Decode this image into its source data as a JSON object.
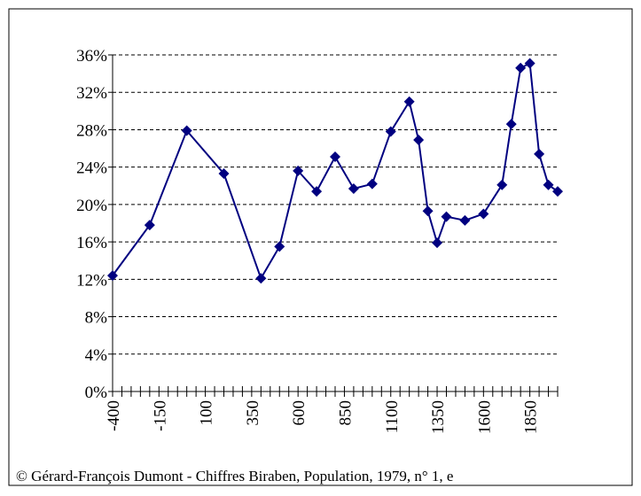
{
  "chart_data": {
    "type": "line",
    "footer": "© Gérard-François Dumont - Chiffres Biraben,  Population, 1979, n° 1, e",
    "series": [
      {
        "color": "#000080",
        "x": [
          -400,
          -200,
          0,
          200,
          400,
          500,
          600,
          700,
          800,
          900,
          1000,
          1100,
          1200,
          1250,
          1300,
          1350,
          1400,
          1500,
          1600,
          1700,
          1750,
          1800,
          1850,
          1900,
          1950,
          2000
        ],
        "values": [
          12.4,
          17.8,
          27.9,
          23.3,
          12.1,
          15.5,
          23.6,
          21.4,
          25.1,
          21.7,
          22.2,
          27.8,
          31.0,
          26.9,
          19.3,
          15.9,
          18.7,
          18.3,
          19.0,
          22.1,
          28.6,
          34.6,
          35.1,
          25.4,
          22.1,
          21.4
        ]
      }
    ],
    "xlim": [
      -400,
      2000
    ],
    "xticks": [
      -400,
      -150,
      100,
      350,
      600,
      850,
      1100,
      1350,
      1600,
      1850
    ],
    "xminorticks": [
      -350,
      -300,
      -250,
      -200,
      -100,
      -50,
      0,
      50,
      150,
      200,
      250,
      300,
      400,
      450,
      500,
      550,
      650,
      700,
      750,
      800,
      900,
      950,
      1000,
      1050,
      1150,
      1200,
      1250,
      1300,
      1400,
      1450,
      1500,
      1550,
      1650,
      1700,
      1750,
      1800,
      1900,
      1950,
      2000
    ],
    "ylim": [
      0,
      36
    ],
    "yticks": [
      {
        "value": 0,
        "label": "0%"
      },
      {
        "value": 4,
        "label": "4%"
      },
      {
        "value": 8,
        "label": "8%"
      },
      {
        "value": 12,
        "label": "12%"
      },
      {
        "value": 16,
        "label": "16%"
      },
      {
        "value": 20,
        "label": "20%"
      },
      {
        "value": 24,
        "label": "24%"
      },
      {
        "value": 28,
        "label": "28%"
      },
      {
        "value": 32,
        "label": "32%"
      },
      {
        "value": 36,
        "label": "36%"
      }
    ],
    "grid": true
  }
}
